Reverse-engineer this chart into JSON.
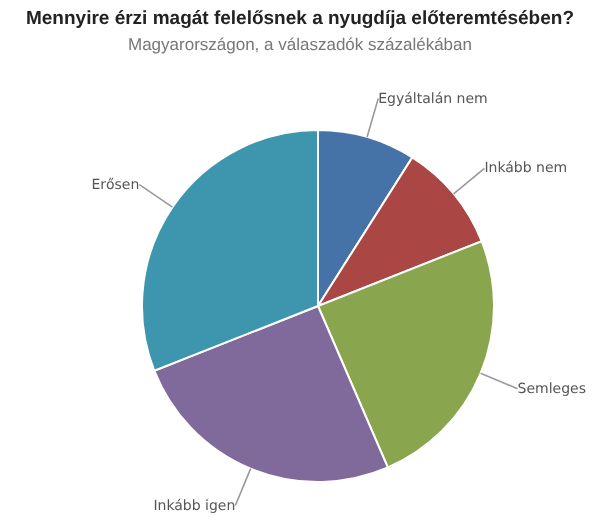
{
  "chart_data": {
    "type": "pie",
    "title": "Mennyire érzi magát felelősnek a nyugdíja előteremtésében?",
    "subtitle": "Magyarországon, a válaszadók százalékában",
    "categories": [
      "Egyáltalán nem",
      "Inkább nem",
      "Semleges",
      "Inkább igen",
      "Erősen"
    ],
    "values": [
      9,
      10,
      24.5,
      25.5,
      31
    ],
    "colors": [
      "#4572a7",
      "#aa4643",
      "#89a54e",
      "#80699b",
      "#3d96ae"
    ]
  }
}
